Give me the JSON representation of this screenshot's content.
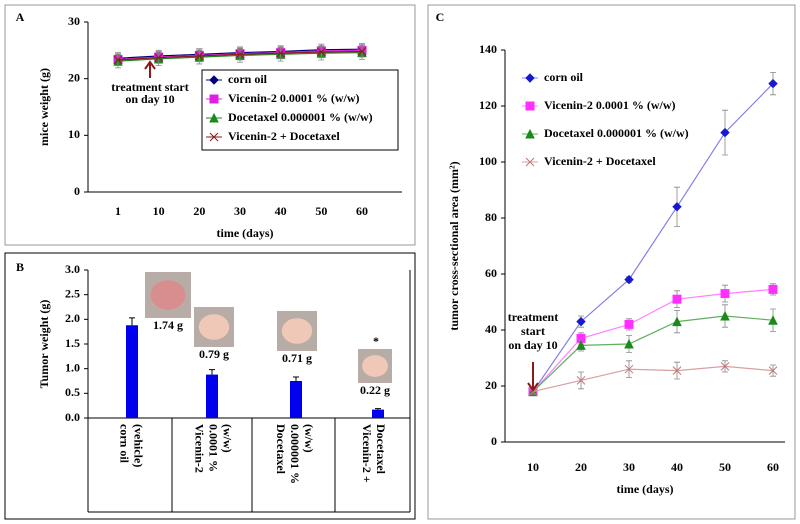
{
  "chart_data": [
    {
      "type": "line",
      "panel": "A",
      "xlabel": "time (days)",
      "ylabel": "mice weight (g)",
      "categories": [
        "1",
        "10",
        "20",
        "30",
        "40",
        "50",
        "60"
      ],
      "ylim": [
        0,
        30
      ],
      "yticks": [
        0,
        10,
        20,
        30
      ],
      "annotation": [
        "treatment start",
        "on day 10"
      ],
      "annotation_color": "#8b1a1a",
      "series": [
        {
          "name": "corn oil",
          "color": "#00007f",
          "marker": "diamond",
          "values": [
            23.6,
            24,
            24.3,
            24.6,
            24.8,
            25.1,
            25.2
          ],
          "errors": [
            1,
            1,
            1,
            1,
            1,
            1,
            1
          ]
        },
        {
          "name": "Vicenin-2 0.0001 % (w/w)",
          "color": "#e020e0",
          "marker": "square",
          "values": [
            23.4,
            23.8,
            24.1,
            24.4,
            24.6,
            24.9,
            25
          ],
          "errors": [
            1,
            1,
            1,
            1,
            1,
            1,
            1
          ]
        },
        {
          "name": "Docetaxel 0.000001 % (w/w)",
          "color": "#1a8a1a",
          "marker": "triangle",
          "values": [
            23.1,
            23.5,
            23.8,
            24.1,
            24.3,
            24.5,
            24.6
          ],
          "errors": [
            1.2,
            1.2,
            1.2,
            1.2,
            1.2,
            1.2,
            1.2
          ]
        },
        {
          "name": "Vicenin-2 + Docetaxel",
          "color": "#8b1a1a",
          "marker": "x",
          "values": [
            23.3,
            23.7,
            24,
            24.3,
            24.5,
            24.7,
            24.8
          ],
          "errors": [
            1,
            1,
            1,
            1,
            1,
            1,
            1
          ]
        }
      ]
    },
    {
      "type": "bar",
      "panel": "B",
      "ylabel": "Tumor weight (g)",
      "categories": [
        [
          "corn oil",
          "(vehicle)"
        ],
        [
          "Vicenin-2",
          "0.0001 %",
          "(w/w)"
        ],
        [
          "Docetaxel",
          "0.000001 %",
          "(w/w)"
        ],
        [
          "Vicenin-2 +",
          "Docetaxel"
        ]
      ],
      "values": [
        1.88,
        0.88,
        0.75,
        0.17
      ],
      "errors": [
        0.15,
        0.1,
        0.08,
        0.02
      ],
      "color": "#0000ee",
      "ylim": [
        0,
        3
      ],
      "yticks": [
        {
          "value": 0,
          "label": "0.0"
        },
        {
          "value": 0.5,
          "label": "0.5"
        },
        {
          "value": 1,
          "label": "1.0"
        },
        {
          "value": 1.5,
          "label": "1.5"
        },
        {
          "value": 2,
          "label": "2.0"
        },
        {
          "value": 2.5,
          "label": "2.5"
        },
        {
          "value": 3,
          "label": "3.0"
        }
      ],
      "photo_labels": [
        "1.74 g",
        "0.79 g",
        "0.71 g",
        "0.22 g"
      ],
      "significance": "*"
    },
    {
      "type": "line",
      "panel": "C",
      "xlabel": "time (days)",
      "ylabel": "tumor cross-sectional area (mm²)",
      "categories": [
        "10",
        "20",
        "30",
        "40",
        "50",
        "60"
      ],
      "ylim": [
        0,
        140
      ],
      "yticks": [
        0,
        20,
        40,
        60,
        80,
        100,
        120,
        140
      ],
      "annotation": [
        "treatment",
        "start",
        "on day 10"
      ],
      "annotation_color": "#8b1a1a",
      "series": [
        {
          "name": "corn oil",
          "color": "#1818d0",
          "line_color": "#8080e8",
          "marker": "diamond",
          "values": [
            18,
            43,
            58,
            84,
            110.5,
            128
          ],
          "errors": [
            1,
            2,
            1,
            7,
            8,
            4
          ]
        },
        {
          "name": "Vicenin-2 0.0001 % (w/w)",
          "color": "#ff30ff",
          "line_color": "#ff80ff",
          "marker": "square",
          "values": [
            18,
            37,
            42,
            51,
            53,
            54.5
          ],
          "errors": [
            1,
            2,
            2,
            3,
            3,
            2
          ]
        },
        {
          "name": "Docetaxel 0.000001 % (w/w)",
          "color": "#1a8a1a",
          "line_color": "#60b060",
          "marker": "triangle",
          "values": [
            18,
            34.5,
            35,
            43,
            45,
            43.5
          ],
          "errors": [
            1,
            2,
            3,
            4,
            4,
            4
          ]
        },
        {
          "name": "Vicenin-2 + Docetaxel",
          "color": "#c07878",
          "line_color": "#d8a0a0",
          "marker": "x",
          "values": [
            18,
            22,
            26,
            25.5,
            27,
            25.5
          ],
          "errors": [
            1,
            3,
            3,
            3,
            2,
            2
          ]
        }
      ]
    }
  ]
}
